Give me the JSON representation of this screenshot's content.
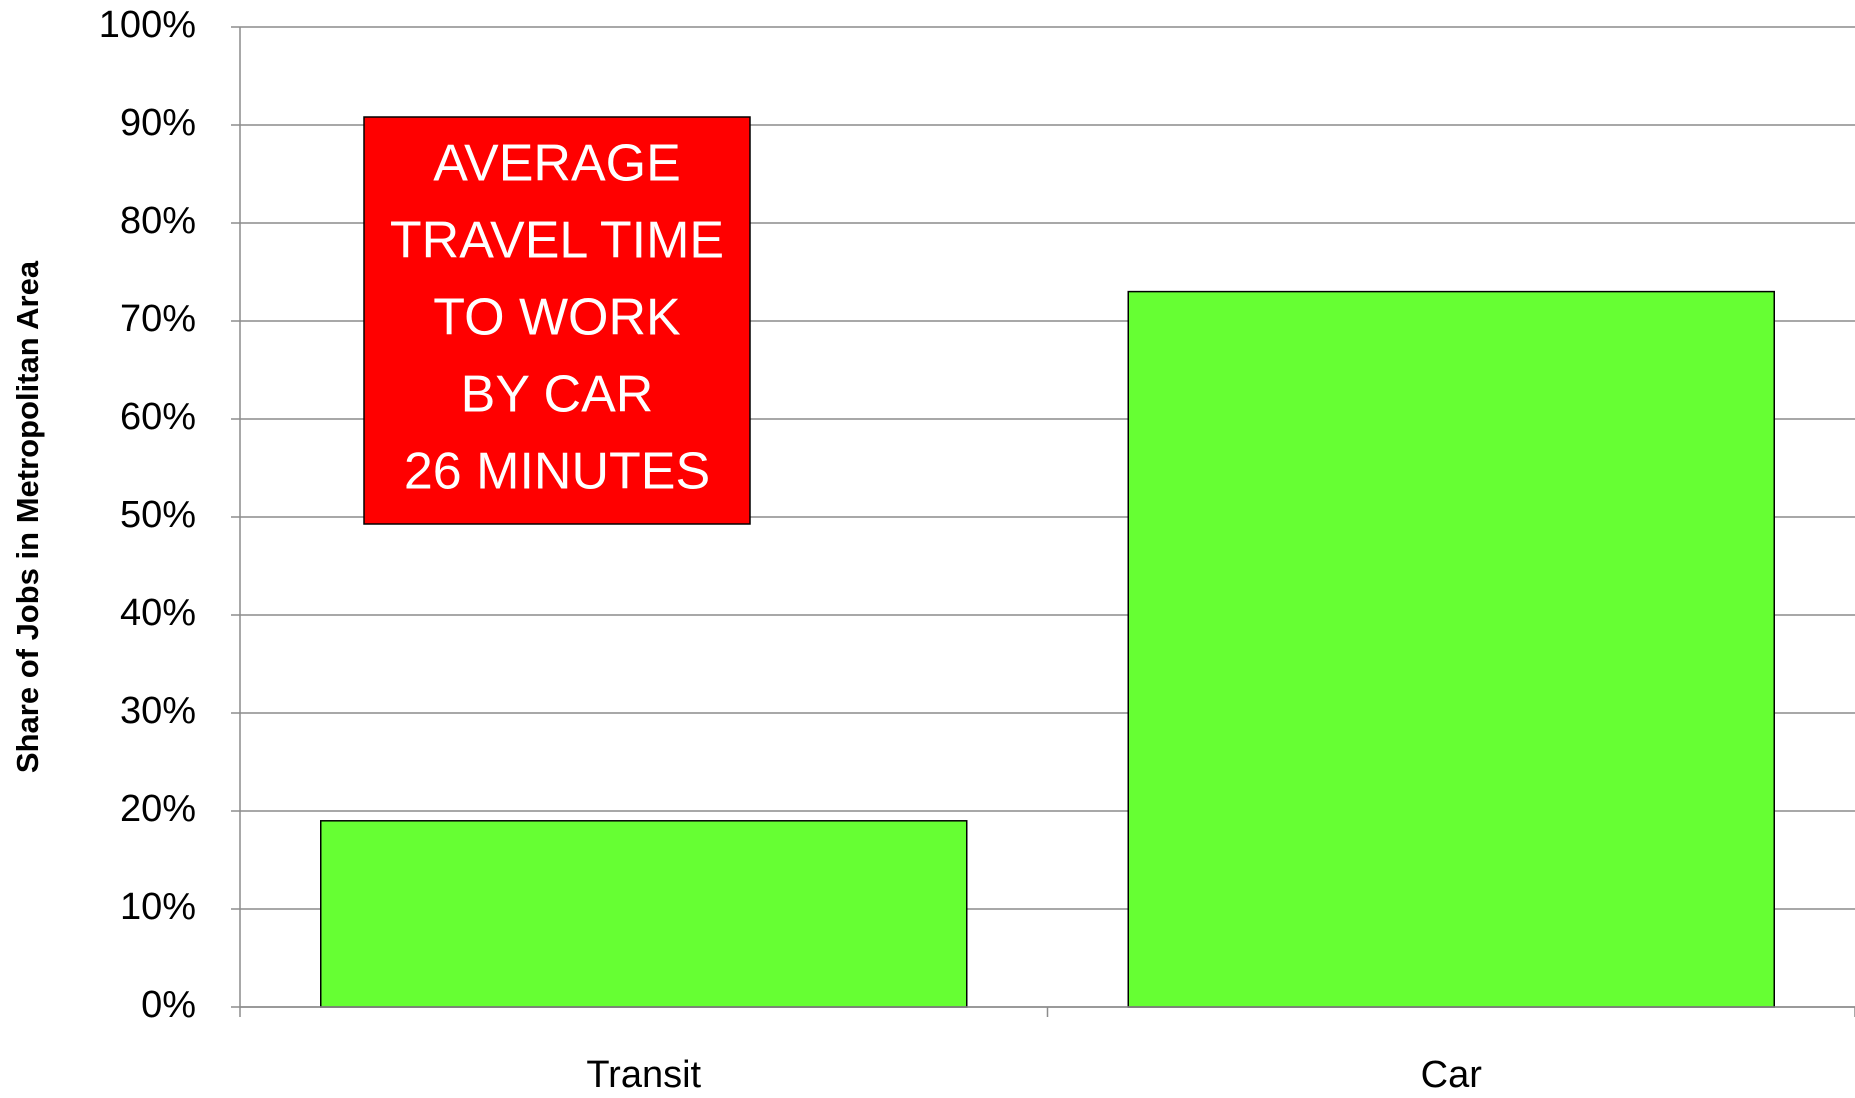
{
  "chart_data": {
    "type": "bar",
    "y_label": "Share of Jobs in Metropolitan Area",
    "categories": [
      "Transit",
      "Car"
    ],
    "values": [
      19,
      73
    ],
    "color": "#66ff33",
    "ylim": [
      0,
      100
    ],
    "yticks": [
      {
        "value": 0,
        "label": "0%"
      },
      {
        "value": 10,
        "label": "10%"
      },
      {
        "value": 20,
        "label": "20%"
      },
      {
        "value": 30,
        "label": "30%"
      },
      {
        "value": 40,
        "label": "40%"
      },
      {
        "value": 50,
        "label": "50%"
      },
      {
        "value": 60,
        "label": "60%"
      },
      {
        "value": 70,
        "label": "70%"
      },
      {
        "value": 80,
        "label": "80%"
      },
      {
        "value": 90,
        "label": "90%"
      },
      {
        "value": 100,
        "label": "100%"
      }
    ],
    "grid": true,
    "annotation": {
      "lines": [
        "AVERAGE",
        "TRAVEL TIME",
        "TO WORK",
        "BY CAR",
        "26 MINUTES"
      ],
      "color": "#ff0000"
    }
  }
}
